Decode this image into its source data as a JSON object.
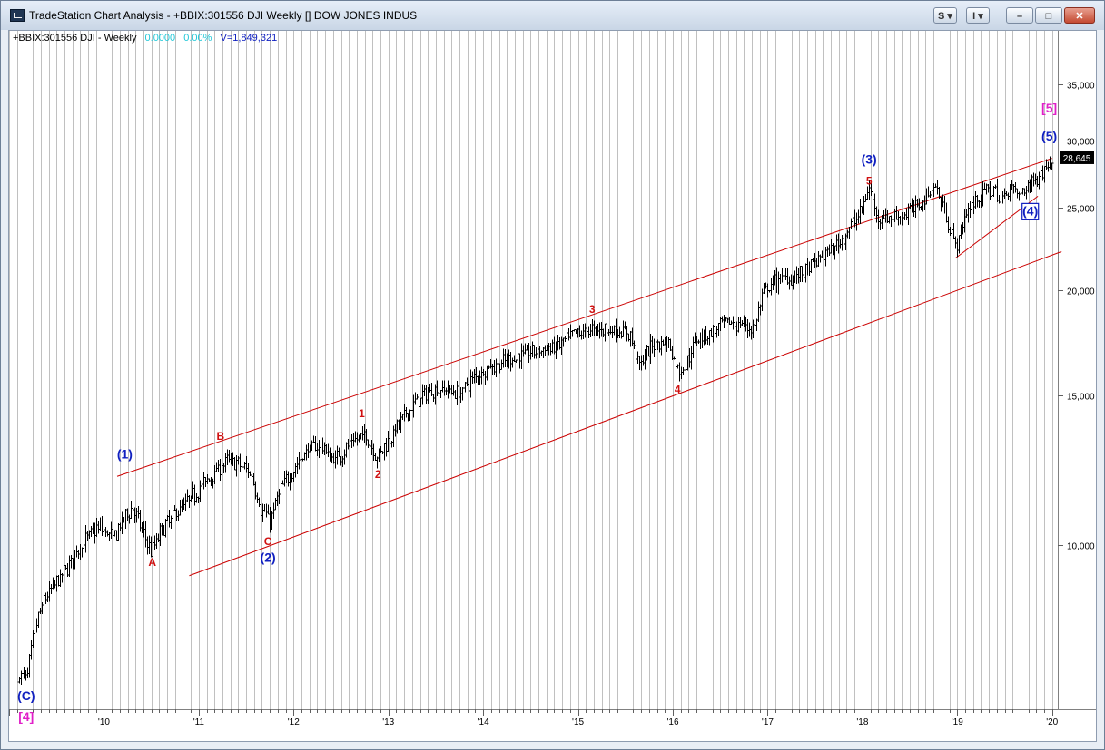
{
  "window": {
    "title": "TradeStation Chart Analysis - +BBIX:301556 DJI Weekly [] DOW JONES INDUS",
    "buttons": {
      "s": "S",
      "i": "I",
      "minimize": "–",
      "restore": "□",
      "close": "✕"
    }
  },
  "info": {
    "symbol": "+BBIX:301556 DJI - Weekly",
    "change": "0.0000",
    "change_pct": "0.00%",
    "volume": "V=1,849,321"
  },
  "colors": {
    "wave_blue": "#1020c0",
    "wave_red": "#d01010",
    "wave_magenta": "#e020c8",
    "channel": "#cc0000",
    "price_bar": "#000000",
    "grid": "#c0c0c0"
  },
  "chart_data": {
    "type": "line",
    "title": "DOW JONES INDUS",
    "scale": "log",
    "ylim": [
      6400,
      38500
    ],
    "y_ticks": [
      10000,
      15000,
      20000,
      25000,
      30000,
      35000
    ],
    "y_tick_labels": [
      "10,000",
      "15,000",
      "20,000",
      "25,000",
      "30,000",
      "35,000"
    ],
    "x_ticks": [
      2010,
      2011,
      2012,
      2013,
      2014,
      2015,
      2016,
      2017,
      2018,
      2019,
      2020
    ],
    "x_tick_labels": [
      "'10",
      "'11",
      "'12",
      "'13",
      "'14",
      "'15",
      "'16",
      "'17",
      "'18",
      "'19",
      "'20"
    ],
    "last_price": 28645,
    "last_price_label": "28,645",
    "series": [
      {
        "values": [
          [
            2009.18,
            7000
          ],
          [
            2009.27,
            8000
          ],
          [
            2009.36,
            8600
          ],
          [
            2009.45,
            8900
          ],
          [
            2009.55,
            9200
          ],
          [
            2009.7,
            9800
          ],
          [
            2009.85,
            10300
          ],
          [
            2009.95,
            10500
          ],
          [
            2010.1,
            10200
          ],
          [
            2010.2,
            10700
          ],
          [
            2010.3,
            11100
          ],
          [
            2010.4,
            10400
          ],
          [
            2010.5,
            9800
          ],
          [
            2010.6,
            10400
          ],
          [
            2010.75,
            10900
          ],
          [
            2010.9,
            11300
          ],
          [
            2011.05,
            11800
          ],
          [
            2011.2,
            12300
          ],
          [
            2011.32,
            12600
          ],
          [
            2011.45,
            12400
          ],
          [
            2011.55,
            12100
          ],
          [
            2011.65,
            11000
          ],
          [
            2011.75,
            10700
          ],
          [
            2011.85,
            11600
          ],
          [
            2012.0,
            12300
          ],
          [
            2012.15,
            13000
          ],
          [
            2012.3,
            13100
          ],
          [
            2012.4,
            12600
          ],
          [
            2012.5,
            12800
          ],
          [
            2012.6,
            13200
          ],
          [
            2012.75,
            13500
          ],
          [
            2012.88,
            12700
          ],
          [
            2013.0,
            13300
          ],
          [
            2013.15,
            14100
          ],
          [
            2013.3,
            14800
          ],
          [
            2013.45,
            15200
          ],
          [
            2013.6,
            15300
          ],
          [
            2013.75,
            15100
          ],
          [
            2013.9,
            15800
          ],
          [
            2014.05,
            16200
          ],
          [
            2014.2,
            16400
          ],
          [
            2014.35,
            16700
          ],
          [
            2014.5,
            16900
          ],
          [
            2014.65,
            17000
          ],
          [
            2014.8,
            17200
          ],
          [
            2014.95,
            17700
          ],
          [
            2015.1,
            17900
          ],
          [
            2015.25,
            18000
          ],
          [
            2015.4,
            17900
          ],
          [
            2015.55,
            17700
          ],
          [
            2015.65,
            16300
          ],
          [
            2015.8,
            17300
          ],
          [
            2015.95,
            17400
          ],
          [
            2016.05,
            16100
          ],
          [
            2016.12,
            16200
          ],
          [
            2016.25,
            17600
          ],
          [
            2016.4,
            17800
          ],
          [
            2016.55,
            18300
          ],
          [
            2016.7,
            18200
          ],
          [
            2016.85,
            18000
          ],
          [
            2016.95,
            19800
          ],
          [
            2017.1,
            20600
          ],
          [
            2017.25,
            20700
          ],
          [
            2017.4,
            21000
          ],
          [
            2017.55,
            21800
          ],
          [
            2017.7,
            22400
          ],
          [
            2017.85,
            23500
          ],
          [
            2018.0,
            25000
          ],
          [
            2018.07,
            26500
          ],
          [
            2018.15,
            24500
          ],
          [
            2018.3,
            24300
          ],
          [
            2018.45,
            24600
          ],
          [
            2018.6,
            25300
          ],
          [
            2018.75,
            26600
          ],
          [
            2018.85,
            25000
          ],
          [
            2018.93,
            23500
          ],
          [
            2018.98,
            22400
          ],
          [
            2019.1,
            24800
          ],
          [
            2019.25,
            26000
          ],
          [
            2019.38,
            26300
          ],
          [
            2019.45,
            25300
          ],
          [
            2019.55,
            26600
          ],
          [
            2019.65,
            25900
          ],
          [
            2019.75,
            26600
          ],
          [
            2019.85,
            27300
          ],
          [
            2019.95,
            28000
          ],
          [
            2020.0,
            28645
          ]
        ]
      }
    ],
    "annotations": [
      {
        "text": "(1)",
        "x": 2010.22,
        "y": 12650,
        "color": "blue"
      },
      {
        "text": "A",
        "x": 2010.51,
        "y": 9450,
        "color": "red"
      },
      {
        "text": "B",
        "x": 2011.23,
        "y": 13300,
        "color": "red"
      },
      {
        "text": "C",
        "x": 2011.73,
        "y": 10000,
        "color": "red"
      },
      {
        "text": "(2)",
        "x": 2011.73,
        "y": 9550,
        "color": "blue"
      },
      {
        "text": "1",
        "x": 2012.72,
        "y": 14150,
        "color": "red"
      },
      {
        "text": "2",
        "x": 2012.89,
        "y": 12000,
        "color": "red"
      },
      {
        "text": "3",
        "x": 2015.15,
        "y": 18800,
        "color": "red"
      },
      {
        "text": "4",
        "x": 2016.05,
        "y": 15100,
        "color": "red"
      },
      {
        "text": "(3)",
        "x": 2018.07,
        "y": 28200,
        "color": "blue"
      },
      {
        "text": "5",
        "x": 2018.07,
        "y": 26650,
        "color": "red"
      },
      {
        "text": "[5]",
        "x": 2019.97,
        "y": 32400,
        "color": "magenta"
      },
      {
        "text": "(5)",
        "x": 2019.97,
        "y": 30000,
        "color": "blue"
      },
      {
        "text": "(4)",
        "x": 2019.77,
        "y": 24500,
        "color": "blue",
        "boxed": true
      },
      {
        "text": "(C)",
        "x": 2009.18,
        "y": 6560,
        "color": "blue"
      },
      {
        "text": "[4]",
        "x": 2009.18,
        "y": 6200,
        "color": "magenta"
      }
    ],
    "trendlines": [
      {
        "from": [
          2010.14,
          12050
        ],
        "to": [
          2020.0,
          28600
        ]
      },
      {
        "from": [
          2010.9,
          9200
        ],
        "to": [
          2020.1,
          22200
        ]
      },
      {
        "from": [
          2018.98,
          21800
        ],
        "to": [
          2019.85,
          25800
        ]
      }
    ]
  }
}
